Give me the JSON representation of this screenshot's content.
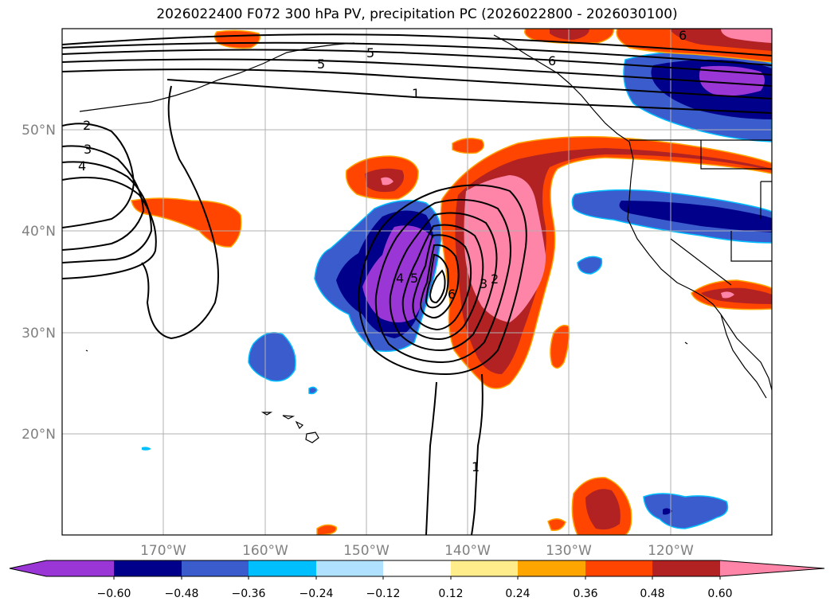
{
  "title": "2026022400 F072 300 hPa PV, precipitation PC (2026022800 - 2026030100)",
  "map": {
    "lat_labels": [
      "50°N",
      "40°N",
      "30°N",
      "20°N"
    ],
    "lon_labels": [
      "170°W",
      "160°W",
      "150°W",
      "140°W",
      "130°W",
      "120°W"
    ],
    "grid": true,
    "gridline_color": "#b0b0b0",
    "filled_field": "precipitation PC",
    "contour_field": "300 hPa PV",
    "contour_labels": [
      "2",
      "3",
      "4",
      "5",
      "5",
      "1",
      "6",
      "6",
      "5",
      "4",
      "3",
      "2",
      "6",
      "1"
    ]
  },
  "colorbar": {
    "colors": [
      "#9a36d6",
      "#00008b",
      "#3b5ccc",
      "#00bfff",
      "#b0e2ff",
      "#ffffff",
      "#ffec8b",
      "#ffa500",
      "#ff4500",
      "#b22222",
      "#ff85a8"
    ],
    "tick_labels": [
      "−0.60",
      "−0.48",
      "−0.36",
      "−0.24",
      "−0.12",
      "0.12",
      "0.24",
      "0.36",
      "0.48",
      "0.60"
    ]
  }
}
